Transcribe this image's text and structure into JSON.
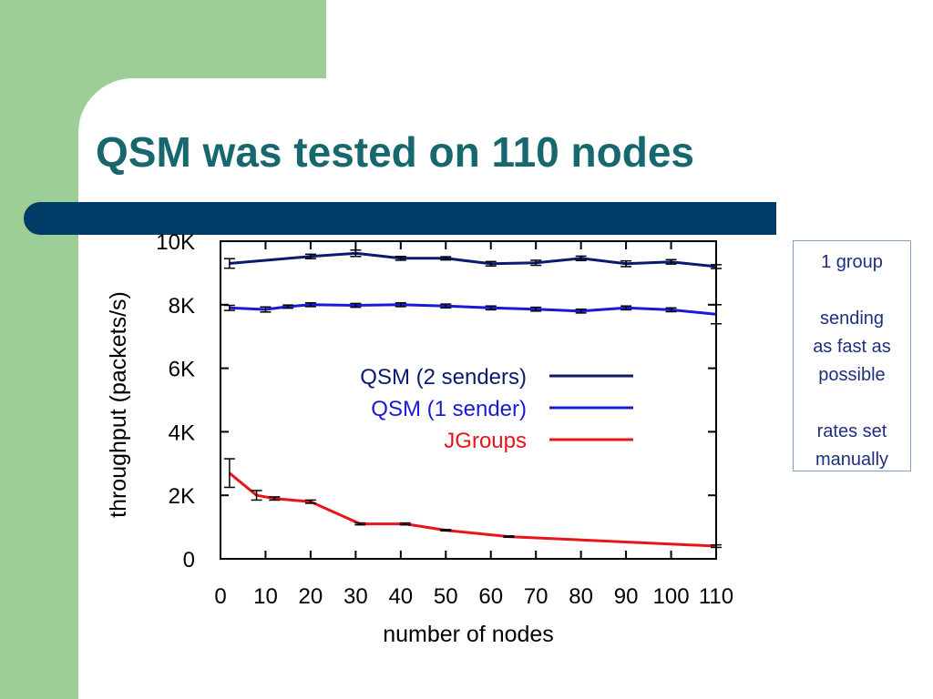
{
  "slide": {
    "title": "QSM was tested on 110 nodes",
    "notes": [
      "1 group",
      "",
      "sending",
      "as fast as",
      "possible",
      "",
      "rates set",
      "manually"
    ]
  },
  "chart_data": {
    "type": "line",
    "title": "",
    "xlabel": "number of nodes",
    "ylabel": "throughput (packets/s)",
    "xlim": [
      0,
      110
    ],
    "ylim": [
      0,
      10000
    ],
    "x_ticks": [
      0,
      10,
      20,
      30,
      40,
      50,
      60,
      70,
      80,
      90,
      100,
      110
    ],
    "x_tick_labels": [
      "0",
      "10",
      "20",
      "30",
      "40",
      "50",
      "60",
      "70",
      "80",
      "90",
      "100",
      "110"
    ],
    "y_ticks": [
      0,
      2000,
      4000,
      6000,
      8000,
      10000
    ],
    "y_tick_labels": [
      "0",
      "2K",
      "4K",
      "6K",
      "8K",
      "10K"
    ],
    "grid": false,
    "legend_position": "center",
    "series": [
      {
        "name": "QSM (2 senders)",
        "color": "#0a1a6e",
        "points": [
          [
            2,
            9300
          ],
          [
            20,
            9520
          ],
          [
            30,
            9620
          ],
          [
            40,
            9460
          ],
          [
            50,
            9460
          ],
          [
            60,
            9290
          ],
          [
            70,
            9320
          ],
          [
            80,
            9460
          ],
          [
            90,
            9290
          ],
          [
            100,
            9350
          ],
          [
            110,
            9200
          ]
        ],
        "error_points": [
          [
            2,
            9300,
            150
          ],
          [
            20,
            9520,
            70
          ],
          [
            30,
            9620,
            100
          ],
          [
            40,
            9460,
            60
          ],
          [
            50,
            9460,
            50
          ],
          [
            60,
            9290,
            70
          ],
          [
            70,
            9320,
            80
          ],
          [
            80,
            9460,
            70
          ],
          [
            90,
            9290,
            90
          ],
          [
            100,
            9350,
            70
          ],
          [
            110,
            9200,
            60
          ]
        ]
      },
      {
        "name": "QSM (1 sender)",
        "color": "#1a1ad6",
        "points": [
          [
            2,
            7900
          ],
          [
            10,
            7850
          ],
          [
            15,
            7940
          ],
          [
            20,
            8000
          ],
          [
            30,
            7980
          ],
          [
            40,
            8000
          ],
          [
            50,
            7960
          ],
          [
            60,
            7900
          ],
          [
            70,
            7860
          ],
          [
            80,
            7800
          ],
          [
            90,
            7900
          ],
          [
            100,
            7840
          ],
          [
            110,
            7700
          ]
        ],
        "error_points": [
          [
            2,
            7900,
            80
          ],
          [
            10,
            7850,
            80
          ],
          [
            15,
            7940,
            50
          ],
          [
            20,
            8000,
            60
          ],
          [
            30,
            7980,
            60
          ],
          [
            40,
            8000,
            60
          ],
          [
            50,
            7960,
            60
          ],
          [
            60,
            7900,
            60
          ],
          [
            70,
            7860,
            60
          ],
          [
            80,
            7800,
            60
          ],
          [
            90,
            7900,
            60
          ],
          [
            100,
            7840,
            60
          ],
          [
            110,
            7700,
            300
          ]
        ]
      },
      {
        "name": "JGroups",
        "color": "#e8141a",
        "points": [
          [
            2,
            2700
          ],
          [
            8,
            2000
          ],
          [
            12,
            1900
          ],
          [
            20,
            1800
          ],
          [
            31,
            1100
          ],
          [
            41,
            1100
          ],
          [
            50,
            900
          ],
          [
            64,
            700
          ],
          [
            110,
            400
          ]
        ],
        "error_points": [
          [
            2,
            2700,
            450
          ],
          [
            8,
            2000,
            150
          ],
          [
            12,
            1900,
            50
          ],
          [
            20,
            1800,
            50
          ],
          [
            31,
            1100,
            30
          ],
          [
            41,
            1100,
            30
          ],
          [
            50,
            900,
            20
          ],
          [
            64,
            700,
            20
          ],
          [
            110,
            400,
            40
          ]
        ]
      }
    ]
  }
}
